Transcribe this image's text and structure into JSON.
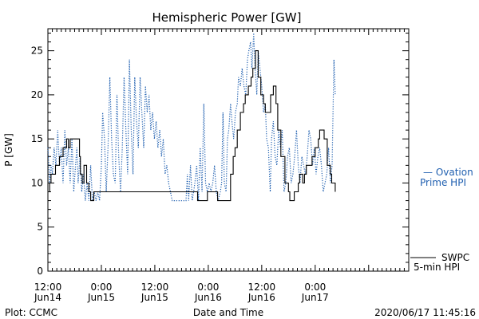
{
  "chart_data": {
    "type": "line",
    "title": "Hemispheric Power [GW]",
    "ylabel": "P [GW]",
    "xlabel": "Date and Time",
    "ylim": [
      0,
      27.5
    ],
    "xlim_hours": [
      0,
      81
    ],
    "yticks": [
      0,
      5,
      10,
      15,
      20,
      25
    ],
    "xticks": [
      {
        "hour": 0,
        "line1": "12:00",
        "line2": "Jun14"
      },
      {
        "hour": 12,
        "line1": "0:00",
        "line2": "Jun15"
      },
      {
        "hour": 24,
        "line1": "12:00",
        "line2": "Jun15"
      },
      {
        "hour": 36,
        "line1": "0:00",
        "line2": "Jun16"
      },
      {
        "hour": 48,
        "line1": "12:00",
        "line2": "Jun16"
      },
      {
        "hour": 60,
        "line1": "0:00",
        "line2": "Jun17"
      }
    ],
    "series": [
      {
        "name": "SWPC 5-min HPI",
        "color": "#000000",
        "style": "step",
        "points": [
          [
            0,
            9
          ],
          [
            0.4,
            10
          ],
          [
            0.7,
            11
          ],
          [
            1.7,
            12
          ],
          [
            2.6,
            13
          ],
          [
            3.4,
            14
          ],
          [
            4.2,
            15
          ],
          [
            4.6,
            14
          ],
          [
            5,
            15
          ],
          [
            7.1,
            13
          ],
          [
            7.3,
            11
          ],
          [
            7.7,
            10
          ],
          [
            8.1,
            12
          ],
          [
            8.7,
            10
          ],
          [
            9.2,
            9
          ],
          [
            9.6,
            8
          ],
          [
            10,
            8
          ],
          [
            10.3,
            9
          ],
          [
            33.6,
            8
          ],
          [
            35.5,
            8
          ],
          [
            35.8,
            9
          ],
          [
            37.2,
            9
          ],
          [
            37.7,
            9
          ],
          [
            38.1,
            8
          ],
          [
            40.3,
            8
          ],
          [
            41,
            11
          ],
          [
            41.6,
            13
          ],
          [
            42,
            14
          ],
          [
            42.5,
            16
          ],
          [
            43.2,
            18
          ],
          [
            43.9,
            19
          ],
          [
            44.3,
            20
          ],
          [
            45,
            21
          ],
          [
            45.6,
            22
          ],
          [
            46,
            23
          ],
          [
            46.6,
            25
          ],
          [
            47.2,
            22
          ],
          [
            47.8,
            20
          ],
          [
            48.4,
            19
          ],
          [
            48.8,
            18
          ],
          [
            49.4,
            18
          ],
          [
            50,
            20
          ],
          [
            50.6,
            21
          ],
          [
            51.2,
            19
          ],
          [
            51.6,
            16
          ],
          [
            52.3,
            13
          ],
          [
            53.2,
            10
          ],
          [
            54,
            9
          ],
          [
            54.3,
            8
          ],
          [
            55.3,
            9
          ],
          [
            56.2,
            10
          ],
          [
            56.5,
            11
          ],
          [
            57.2,
            10
          ],
          [
            57.6,
            11
          ],
          [
            58,
            12
          ],
          [
            59.3,
            13
          ],
          [
            60,
            14
          ],
          [
            60.7,
            15
          ],
          [
            61,
            16
          ],
          [
            61.6,
            16
          ],
          [
            62,
            15
          ],
          [
            62.7,
            12
          ],
          [
            63.4,
            11
          ],
          [
            63.7,
            10
          ],
          [
            64.2,
            10
          ],
          [
            64.5,
            9
          ]
        ]
      },
      {
        "name": "Ovation Prime HPI",
        "color": "#1f5fb0",
        "style": "dotted",
        "points": [
          [
            0,
            14
          ],
          [
            0.4,
            10
          ],
          [
            0.7,
            12
          ],
          [
            1,
            11
          ],
          [
            1.4,
            14
          ],
          [
            1.8,
            12
          ],
          [
            2.2,
            16
          ],
          [
            2.6,
            12
          ],
          [
            3,
            14
          ],
          [
            3.4,
            10
          ],
          [
            3.8,
            16
          ],
          [
            4.2,
            12
          ],
          [
            4.6,
            14
          ],
          [
            5,
            10
          ],
          [
            5.4,
            15
          ],
          [
            5.8,
            9
          ],
          [
            6.2,
            12
          ],
          [
            6.5,
            14
          ],
          [
            6.8,
            10
          ],
          [
            7.2,
            13
          ],
          [
            7.6,
            9
          ],
          [
            8,
            11
          ],
          [
            8.4,
            8
          ],
          [
            8.8,
            10
          ],
          [
            9.2,
            8
          ],
          [
            9.6,
            12
          ],
          [
            10,
            8
          ],
          [
            10.4,
            9
          ],
          [
            10.8,
            8
          ],
          [
            11.2,
            9
          ],
          [
            11.6,
            8
          ],
          [
            12,
            12
          ],
          [
            12.3,
            18
          ],
          [
            12.7,
            15
          ],
          [
            13.1,
            9
          ],
          [
            13.5,
            14
          ],
          [
            13.9,
            22
          ],
          [
            14.3,
            15
          ],
          [
            14.7,
            11
          ],
          [
            15.1,
            10
          ],
          [
            15.5,
            20
          ],
          [
            15.9,
            13
          ],
          [
            16.3,
            9
          ],
          [
            16.7,
            14
          ],
          [
            17.1,
            22
          ],
          [
            17.5,
            16
          ],
          [
            17.9,
            11
          ],
          [
            18.3,
            24
          ],
          [
            18.7,
            16
          ],
          [
            19.1,
            11
          ],
          [
            19.5,
            22
          ],
          [
            19.9,
            17
          ],
          [
            20.3,
            14
          ],
          [
            20.7,
            22
          ],
          [
            21.1,
            18
          ],
          [
            21.5,
            14
          ],
          [
            21.9,
            21
          ],
          [
            22.3,
            18
          ],
          [
            22.7,
            20
          ],
          [
            23.1,
            16
          ],
          [
            23.5,
            18
          ],
          [
            23.9,
            15
          ],
          [
            24.3,
            17
          ],
          [
            24.7,
            14
          ],
          [
            25.1,
            16
          ],
          [
            25.5,
            13
          ],
          [
            25.9,
            15
          ],
          [
            26.3,
            11
          ],
          [
            26.7,
            12
          ],
          [
            27.1,
            10
          ],
          [
            27.5,
            9
          ],
          [
            27.9,
            8
          ],
          [
            30,
            8
          ],
          [
            31,
            8
          ],
          [
            31.3,
            11
          ],
          [
            31.6,
            8
          ],
          [
            32,
            12
          ],
          [
            32.4,
            8
          ],
          [
            32.7,
            9
          ],
          [
            33,
            10
          ],
          [
            33.4,
            12
          ],
          [
            33.8,
            8
          ],
          [
            34.2,
            14
          ],
          [
            34.6,
            9
          ],
          [
            35,
            19
          ],
          [
            35.4,
            10
          ],
          [
            35.8,
            9
          ],
          [
            36.2,
            10
          ],
          [
            36.6,
            9
          ],
          [
            37,
            10
          ],
          [
            37.4,
            12
          ],
          [
            37.8,
            9
          ],
          [
            38.2,
            8
          ],
          [
            38.7,
            9
          ],
          [
            39,
            10
          ],
          [
            39.3,
            18
          ],
          [
            39.6,
            10
          ],
          [
            40,
            9
          ],
          [
            40.3,
            15
          ],
          [
            40.6,
            16
          ],
          [
            41,
            19
          ],
          [
            41.3,
            17
          ],
          [
            41.7,
            15
          ],
          [
            42.1,
            18
          ],
          [
            42.5,
            19
          ],
          [
            42.8,
            22
          ],
          [
            43.2,
            21
          ],
          [
            43.6,
            23
          ],
          [
            44,
            21
          ],
          [
            44.4,
            20
          ],
          [
            44.8,
            24
          ],
          [
            45.1,
            25
          ],
          [
            45.5,
            26
          ],
          [
            45.8,
            23
          ],
          [
            46.2,
            27
          ],
          [
            46.5,
            23
          ],
          [
            46.9,
            20
          ],
          [
            47.2,
            25
          ],
          [
            47.6,
            23
          ],
          [
            48,
            21
          ],
          [
            48.4,
            18
          ],
          [
            48.8,
            19
          ],
          [
            49.1,
            15
          ],
          [
            49.5,
            14
          ],
          [
            49.9,
            9
          ],
          [
            50.2,
            15
          ],
          [
            50.6,
            17
          ],
          [
            51,
            13
          ],
          [
            51.4,
            12
          ],
          [
            51.8,
            16
          ],
          [
            52.2,
            14
          ],
          [
            52.6,
            16
          ],
          [
            53,
            9
          ],
          [
            53.4,
            10
          ],
          [
            53.8,
            13
          ],
          [
            54.2,
            14
          ],
          [
            54.6,
            10
          ],
          [
            55,
            11
          ],
          [
            55.4,
            13
          ],
          [
            55.8,
            16
          ],
          [
            56.2,
            12
          ],
          [
            56.6,
            10
          ],
          [
            57,
            13
          ],
          [
            57.4,
            12
          ],
          [
            57.8,
            11
          ],
          [
            58.2,
            13
          ],
          [
            58.6,
            16
          ],
          [
            59,
            15
          ],
          [
            59.4,
            12
          ],
          [
            59.8,
            14
          ],
          [
            60.2,
            11
          ],
          [
            60.6,
            13
          ],
          [
            61,
            14
          ],
          [
            61.4,
            12
          ],
          [
            61.8,
            9
          ],
          [
            62.2,
            10
          ],
          [
            62.6,
            11
          ],
          [
            63,
            14
          ],
          [
            63.4,
            10
          ],
          [
            63.8,
            12
          ],
          [
            64.2,
            24
          ],
          [
            64.5,
            20
          ]
        ]
      }
    ],
    "legend": [
      {
        "text_line1": "— Ovation",
        "text_line2": "Prime HPI",
        "color": "#1f5fb0"
      },
      {
        "text_line1": "SWPC",
        "text_line2": "5-min HPI",
        "color": "#000000"
      }
    ]
  },
  "footer": {
    "left": "Plot: CCMC",
    "right": "2020/06/17 11:45:16"
  }
}
